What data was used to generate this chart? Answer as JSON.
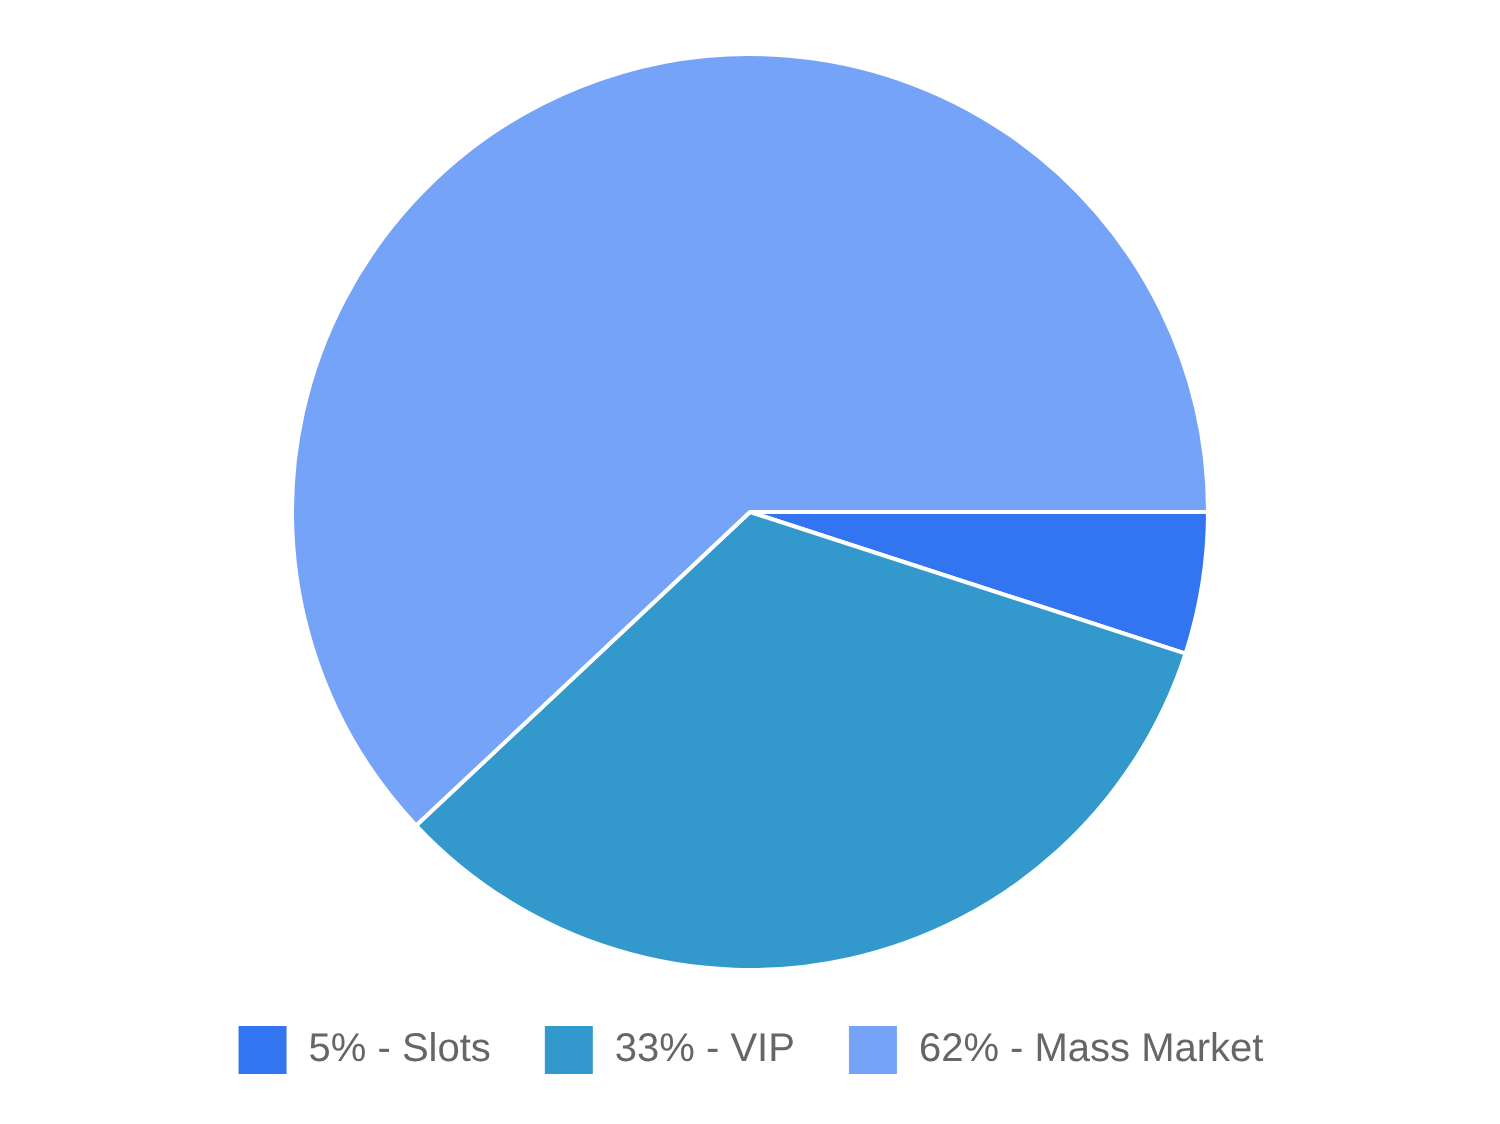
{
  "chart_data": {
    "type": "pie",
    "categories": [
      "5% - Slots",
      "33% - VIP",
      "62% - Mass Market"
    ],
    "values": [
      5,
      33,
      62
    ],
    "colors": [
      "#3375f0",
      "#3399cc",
      "#75a3f7"
    ],
    "legend": "bottom"
  }
}
